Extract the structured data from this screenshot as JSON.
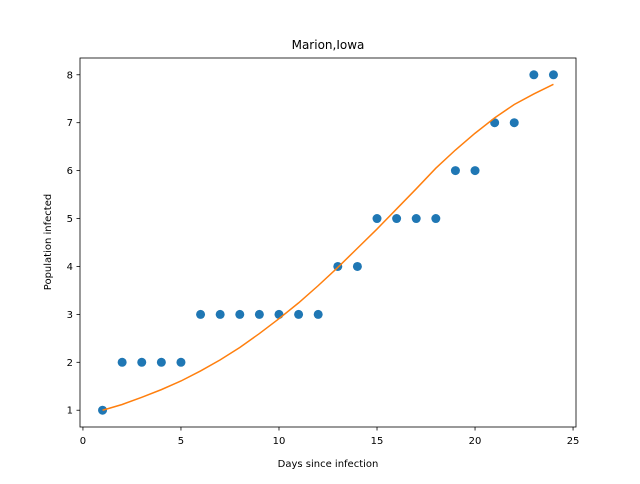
{
  "chart_data": {
    "type": "scatter",
    "title": "Marion,Iowa",
    "xlabel": "Days since infection",
    "ylabel": "Population infected",
    "xlim": [
      -0.15,
      25.15
    ],
    "ylim": [
      0.65,
      8.35
    ],
    "xticks": [
      0,
      5,
      10,
      15,
      20,
      25
    ],
    "yticks": [
      1,
      2,
      3,
      4,
      5,
      6,
      7,
      8
    ],
    "grid": false,
    "series": [
      {
        "kind": "scatter",
        "color": "#1f77b4",
        "x": [
          1,
          2,
          3,
          4,
          5,
          6,
          7,
          8,
          9,
          10,
          11,
          12,
          13,
          14,
          15,
          16,
          17,
          18,
          19,
          20,
          21,
          22,
          23,
          24
        ],
        "y": [
          1,
          2,
          2,
          2,
          2,
          3,
          3,
          3,
          3,
          3,
          3,
          3,
          4,
          4,
          5,
          5,
          5,
          5,
          6,
          6,
          7,
          7,
          8,
          8
        ]
      },
      {
        "kind": "line",
        "color": "#ff7f0e",
        "x": [
          1,
          2,
          3,
          4,
          5,
          6,
          7,
          8,
          9,
          10,
          11,
          12,
          13,
          14,
          15,
          16,
          17,
          18,
          19,
          20,
          21,
          22,
          23,
          24
        ],
        "y": [
          1.0,
          1.12,
          1.27,
          1.43,
          1.61,
          1.82,
          2.05,
          2.31,
          2.6,
          2.91,
          3.24,
          3.6,
          3.98,
          4.38,
          4.78,
          5.2,
          5.62,
          6.05,
          6.43,
          6.78,
          7.1,
          7.38,
          7.6,
          7.8
        ]
      }
    ]
  }
}
